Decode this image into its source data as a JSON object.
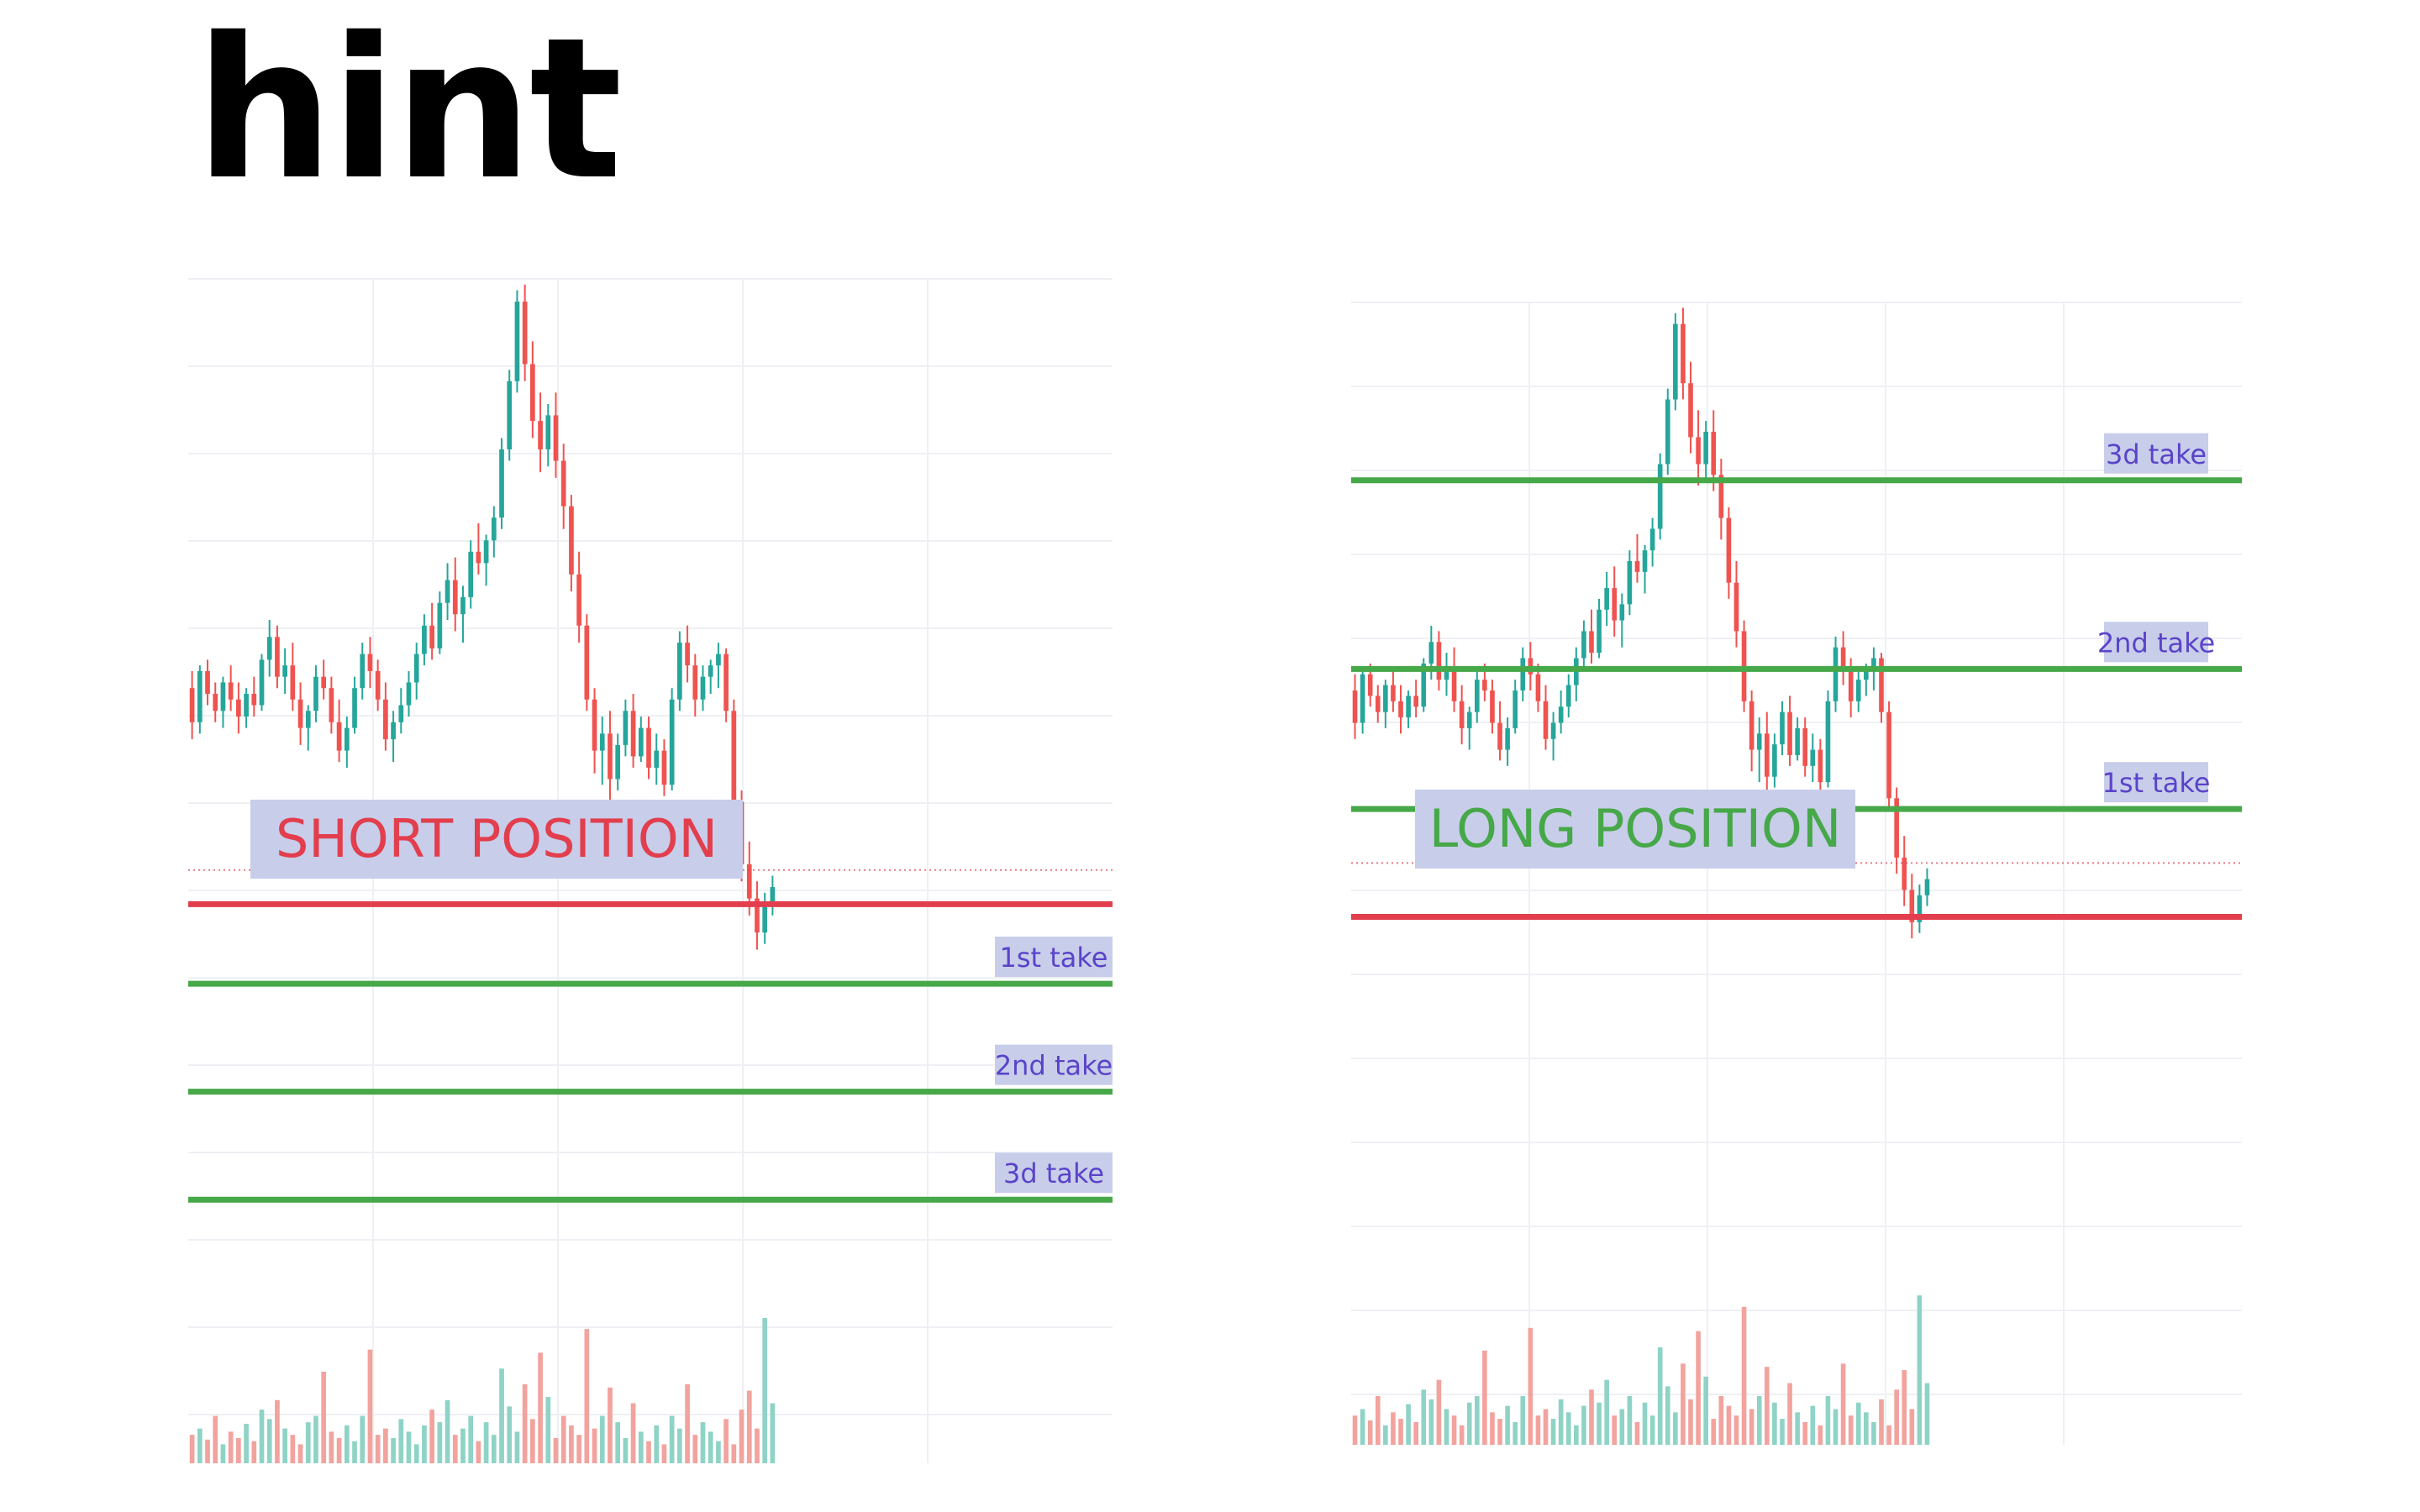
{
  "title": "hint",
  "colors": {
    "up": "#26a69a",
    "down": "#ef5350",
    "up_volume": "#8fd3c6",
    "down_volume": "#f2a39e",
    "entry_line": "#e23e4d",
    "take_line": "#46a848",
    "label_bg": "#c8cdea",
    "label_text": "#5a43c9",
    "short_text": "#e23e4d",
    "long_text": "#46a848",
    "grid": "#eef0f4"
  },
  "chart_data": [
    {
      "type": "candlestick",
      "panel": "left",
      "position_label": "SHORT POSITION",
      "position_color": "short_text",
      "price_range": [
        60,
        180
      ],
      "volume_range": [
        0,
        150
      ],
      "candles": [
        [
          108,
          111,
          99,
          102
        ],
        [
          102,
          112,
          100,
          111
        ],
        [
          111,
          113,
          105,
          107
        ],
        [
          107,
          109,
          102,
          104
        ],
        [
          104,
          110,
          101,
          109
        ],
        [
          109,
          112,
          104,
          106
        ],
        [
          106,
          109,
          100,
          103
        ],
        [
          103,
          108,
          101,
          107
        ],
        [
          107,
          110,
          103,
          105
        ],
        [
          105,
          114,
          104,
          113
        ],
        [
          113,
          120,
          110,
          117
        ],
        [
          117,
          119,
          108,
          110
        ],
        [
          110,
          115,
          107,
          112
        ],
        [
          112,
          116,
          104,
          106
        ],
        [
          106,
          109,
          98,
          101
        ],
        [
          101,
          105,
          97,
          104
        ],
        [
          104,
          112,
          102,
          110
        ],
        [
          110,
          113,
          106,
          108
        ],
        [
          108,
          110,
          100,
          102
        ],
        [
          102,
          106,
          95,
          97
        ],
        [
          97,
          103,
          94,
          101
        ],
        [
          101,
          110,
          100,
          108
        ],
        [
          108,
          116,
          106,
          114
        ],
        [
          114,
          117,
          108,
          111
        ],
        [
          111,
          113,
          104,
          106
        ],
        [
          106,
          109,
          97,
          99
        ],
        [
          99,
          104,
          95,
          102
        ],
        [
          102,
          108,
          100,
          105
        ],
        [
          105,
          111,
          103,
          109
        ],
        [
          109,
          116,
          106,
          114
        ],
        [
          114,
          121,
          112,
          119
        ],
        [
          119,
          123,
          113,
          115
        ],
        [
          115,
          125,
          114,
          123
        ],
        [
          123,
          130,
          120,
          127
        ],
        [
          127,
          131,
          118,
          121
        ],
        [
          121,
          126,
          116,
          124
        ],
        [
          124,
          134,
          122,
          132
        ],
        [
          132,
          137,
          128,
          130
        ],
        [
          130,
          135,
          126,
          134
        ],
        [
          134,
          140,
          131,
          138
        ],
        [
          138,
          152,
          136,
          150
        ],
        [
          150,
          164,
          148,
          162
        ],
        [
          162,
          178,
          160,
          176
        ],
        [
          176,
          179,
          162,
          165
        ],
        [
          165,
          169,
          152,
          155
        ],
        [
          155,
          160,
          146,
          150
        ],
        [
          150,
          158,
          147,
          156
        ],
        [
          156,
          160,
          145,
          148
        ],
        [
          148,
          151,
          136,
          140
        ],
        [
          140,
          142,
          125,
          128
        ],
        [
          128,
          132,
          116,
          119
        ],
        [
          119,
          121,
          104,
          106
        ],
        [
          106,
          108,
          93,
          97
        ],
        [
          97,
          103,
          91,
          100
        ],
        [
          100,
          104,
          88,
          92
        ],
        [
          92,
          100,
          90,
          98
        ],
        [
          98,
          106,
          96,
          104
        ],
        [
          104,
          107,
          94,
          96
        ],
        [
          96,
          103,
          95,
          101
        ],
        [
          101,
          103,
          92,
          94
        ],
        [
          94,
          100,
          91,
          97
        ],
        [
          97,
          99,
          89,
          91
        ],
        [
          91,
          108,
          90,
          106
        ],
        [
          106,
          118,
          104,
          116
        ],
        [
          116,
          119,
          109,
          112
        ],
        [
          112,
          114,
          103,
          106
        ],
        [
          106,
          112,
          104,
          110
        ],
        [
          110,
          113,
          107,
          112
        ],
        [
          112,
          116,
          108,
          114
        ],
        [
          114,
          115,
          102,
          104
        ],
        [
          104,
          106,
          86,
          88
        ],
        [
          88,
          90,
          74,
          77
        ],
        [
          77,
          81,
          68,
          71
        ],
        [
          71,
          74,
          62,
          65
        ],
        [
          65,
          72,
          63,
          70
        ],
        [
          70,
          75,
          68,
          73
        ]
      ],
      "volume": [
        18,
        22,
        15,
        30,
        12,
        20,
        16,
        25,
        14,
        34,
        28,
        40,
        22,
        18,
        12,
        26,
        30,
        58,
        20,
        16,
        24,
        14,
        30,
        72,
        18,
        22,
        16,
        28,
        20,
        12,
        24,
        34,
        26,
        40,
        18,
        22,
        30,
        14,
        26,
        18,
        60,
        36,
        20,
        50,
        28,
        70,
        42,
        16,
        30,
        24,
        18,
        85,
        22,
        30,
        48,
        26,
        16,
        38,
        20,
        14,
        24,
        12,
        30,
        22,
        50,
        18,
        26,
        20,
        14,
        28,
        12,
        34,
        46,
        22,
        92,
        38
      ],
      "entry_price": 70,
      "entry_dotted": 76,
      "levels": [
        {
          "name": "1st take",
          "price": 56
        },
        {
          "name": "2nd take",
          "price": 37
        },
        {
          "name": "3d take",
          "price": 18
        }
      ]
    },
    {
      "type": "candlestick",
      "panel": "right",
      "position_label": "LONG POSITION",
      "position_color": "long_text",
      "price_range": [
        60,
        180
      ],
      "volume_range": [
        0,
        150
      ],
      "candles": [
        [
          108,
          111,
          99,
          102
        ],
        [
          102,
          112,
          100,
          111
        ],
        [
          111,
          113,
          105,
          107
        ],
        [
          107,
          109,
          102,
          104
        ],
        [
          104,
          110,
          101,
          109
        ],
        [
          109,
          112,
          104,
          106
        ],
        [
          106,
          109,
          100,
          103
        ],
        [
          103,
          108,
          101,
          107
        ],
        [
          107,
          110,
          103,
          105
        ],
        [
          105,
          114,
          104,
          113
        ],
        [
          113,
          120,
          110,
          117
        ],
        [
          117,
          119,
          108,
          110
        ],
        [
          110,
          115,
          107,
          112
        ],
        [
          112,
          116,
          104,
          106
        ],
        [
          106,
          109,
          98,
          101
        ],
        [
          101,
          105,
          97,
          104
        ],
        [
          104,
          112,
          102,
          110
        ],
        [
          110,
          113,
          106,
          108
        ],
        [
          108,
          110,
          100,
          102
        ],
        [
          102,
          106,
          95,
          97
        ],
        [
          97,
          103,
          94,
          101
        ],
        [
          101,
          110,
          100,
          108
        ],
        [
          108,
          116,
          106,
          114
        ],
        [
          114,
          117,
          108,
          111
        ],
        [
          111,
          113,
          104,
          106
        ],
        [
          106,
          109,
          97,
          99
        ],
        [
          99,
          104,
          95,
          102
        ],
        [
          102,
          108,
          100,
          105
        ],
        [
          105,
          111,
          103,
          109
        ],
        [
          109,
          116,
          106,
          114
        ],
        [
          114,
          121,
          112,
          119
        ],
        [
          119,
          123,
          113,
          115
        ],
        [
          115,
          125,
          114,
          123
        ],
        [
          123,
          130,
          120,
          127
        ],
        [
          127,
          131,
          118,
          121
        ],
        [
          121,
          126,
          116,
          124
        ],
        [
          124,
          134,
          122,
          132
        ],
        [
          132,
          137,
          128,
          130
        ],
        [
          130,
          135,
          126,
          134
        ],
        [
          134,
          140,
          131,
          138
        ],
        [
          138,
          152,
          136,
          150
        ],
        [
          150,
          164,
          148,
          162
        ],
        [
          162,
          178,
          160,
          176
        ],
        [
          176,
          179,
          162,
          165
        ],
        [
          165,
          169,
          152,
          155
        ],
        [
          155,
          160,
          146,
          150
        ],
        [
          150,
          158,
          147,
          156
        ],
        [
          156,
          160,
          145,
          148
        ],
        [
          148,
          151,
          136,
          140
        ],
        [
          140,
          142,
          125,
          128
        ],
        [
          128,
          132,
          116,
          119
        ],
        [
          119,
          121,
          104,
          106
        ],
        [
          106,
          108,
          93,
          97
        ],
        [
          97,
          103,
          91,
          100
        ],
        [
          100,
          104,
          88,
          92
        ],
        [
          92,
          100,
          90,
          98
        ],
        [
          98,
          106,
          96,
          104
        ],
        [
          104,
          107,
          94,
          96
        ],
        [
          96,
          103,
          95,
          101
        ],
        [
          101,
          103,
          92,
          94
        ],
        [
          94,
          100,
          91,
          97
        ],
        [
          97,
          99,
          89,
          91
        ],
        [
          91,
          108,
          90,
          106
        ],
        [
          106,
          118,
          104,
          116
        ],
        [
          116,
          119,
          109,
          112
        ],
        [
          112,
          114,
          103,
          106
        ],
        [
          106,
          112,
          104,
          110
        ],
        [
          110,
          113,
          107,
          112
        ],
        [
          112,
          116,
          108,
          114
        ],
        [
          114,
          115,
          102,
          104
        ],
        [
          104,
          106,
          86,
          88
        ],
        [
          88,
          90,
          74,
          77
        ],
        [
          77,
          81,
          68,
          71
        ],
        [
          71,
          74,
          62,
          65
        ],
        [
          65,
          72,
          63,
          70
        ],
        [
          70,
          75,
          68,
          73
        ]
      ],
      "volume": [
        18,
        22,
        15,
        30,
        12,
        20,
        16,
        25,
        14,
        34,
        28,
        40,
        22,
        18,
        12,
        26,
        30,
        58,
        20,
        16,
        24,
        14,
        30,
        72,
        18,
        22,
        16,
        28,
        20,
        12,
        24,
        34,
        26,
        40,
        18,
        22,
        30,
        14,
        26,
        18,
        60,
        36,
        20,
        50,
        28,
        70,
        42,
        16,
        30,
        24,
        18,
        85,
        22,
        30,
        48,
        26,
        16,
        38,
        20,
        14,
        24,
        12,
        30,
        22,
        50,
        18,
        26,
        20,
        14,
        28,
        12,
        34,
        46,
        22,
        92,
        38
      ],
      "entry_price": 66,
      "entry_dotted": 76,
      "levels": [
        {
          "name": "3d take",
          "price": 147
        },
        {
          "name": "2nd take",
          "price": 112
        },
        {
          "name": "1st take",
          "price": 86
        }
      ]
    }
  ]
}
